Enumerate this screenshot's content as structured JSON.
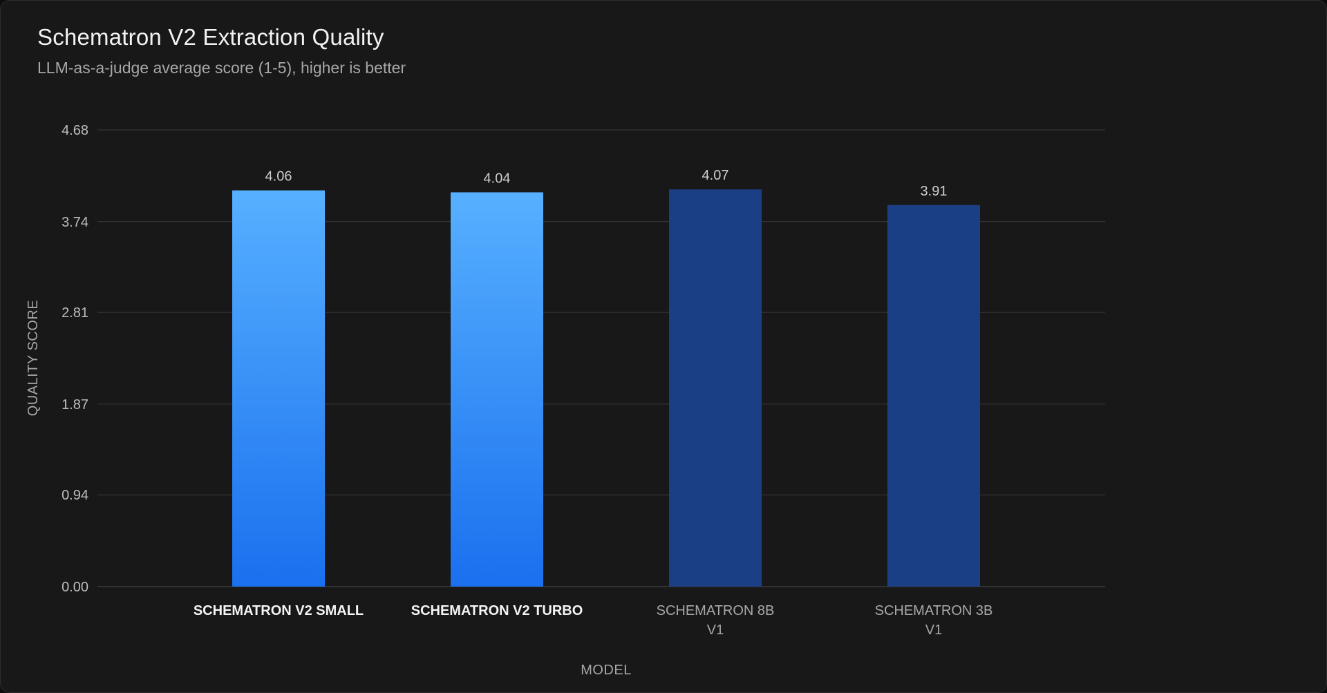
{
  "chart_data": {
    "type": "bar",
    "title": "Schematron V2 Extraction Quality",
    "subtitle": "LLM-as-a-judge average score (1-5), higher is better",
    "xlabel": "MODEL",
    "ylabel": "QUALITY SCORE",
    "categories": [
      [
        "SCHEMATRON V2 SMALL"
      ],
      [
        "SCHEMATRON V2 TURBO"
      ],
      [
        "SCHEMATRON 8B",
        "V1"
      ],
      [
        "SCHEMATRON 3B",
        "V1"
      ]
    ],
    "values": [
      4.06,
      4.04,
      4.07,
      3.91
    ],
    "value_labels": [
      "4.06",
      "4.04",
      "4.07",
      "3.91"
    ],
    "yticks": [
      "0.00",
      "0.94",
      "1.87",
      "2.81",
      "3.74",
      "4.68"
    ],
    "ylim": [
      0,
      4.68
    ],
    "grid": true,
    "bar_styles": [
      "gradient-bright",
      "gradient-bright",
      "solid-dark",
      "solid-dark"
    ],
    "colors": {
      "bright_top": "#57b0ff",
      "bright_bottom": "#1a70ee",
      "dark": "#1b3f85",
      "grid": "#3a3a3a",
      "highlight_label": "#f4f4f4",
      "muted_label": "#a8a8a8"
    }
  }
}
